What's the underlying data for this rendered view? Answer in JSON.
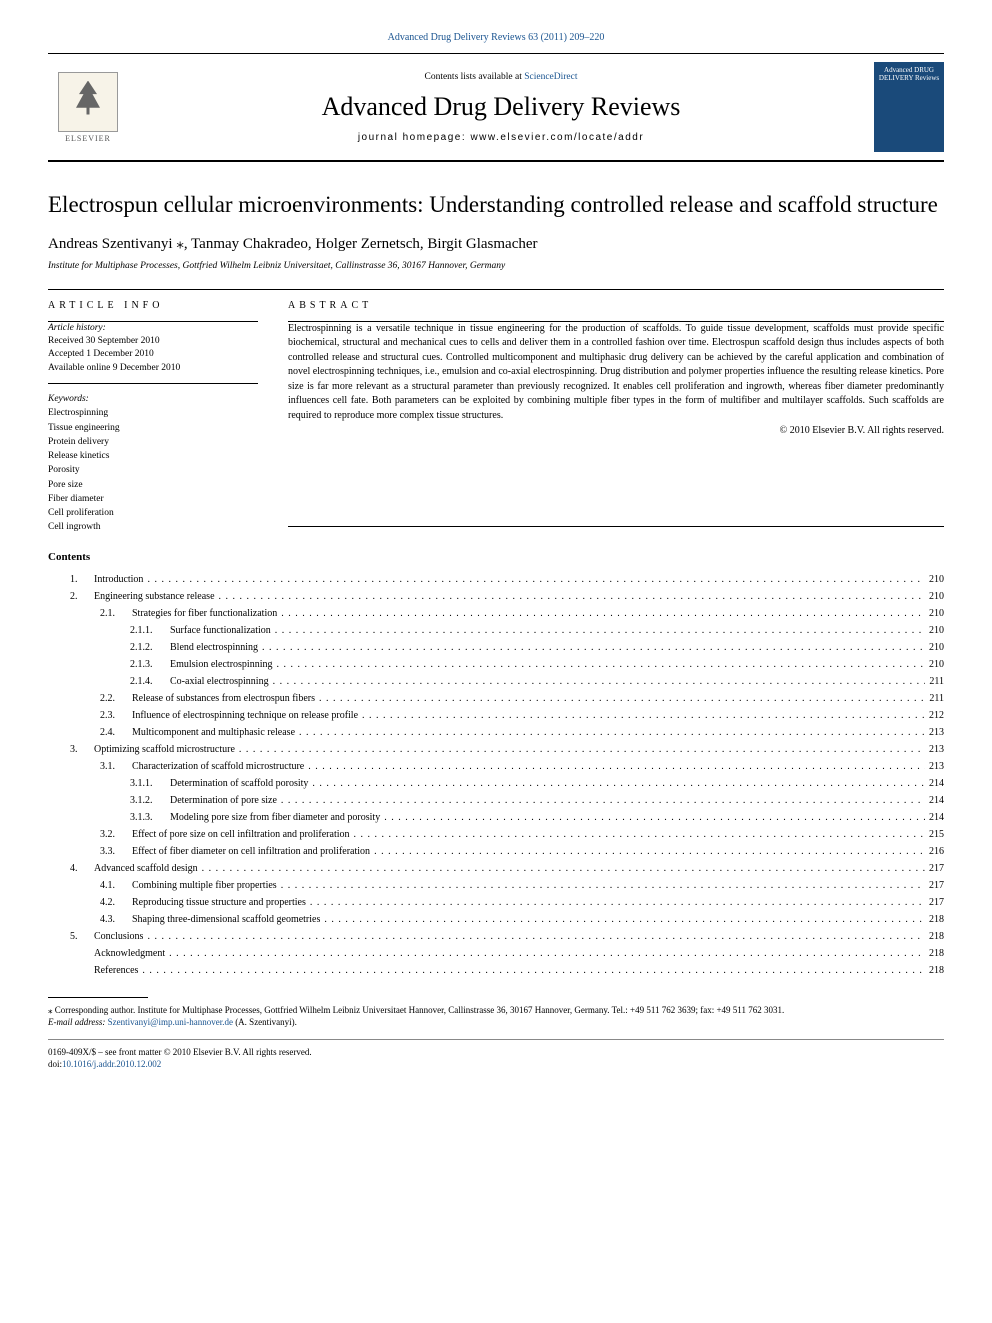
{
  "top_link": "Advanced Drug Delivery Reviews 63 (2011) 209–220",
  "header": {
    "contents_available": "Contents lists available at ",
    "sciencedirect": "ScienceDirect",
    "journal": "Advanced Drug Delivery Reviews",
    "homepage_label": "journal homepage: ",
    "homepage_url": "www.elsevier.com/locate/addr",
    "elsevier": "ELSEVIER",
    "cover_title": "Advanced DRUG DELIVERY Reviews"
  },
  "article": {
    "title": "Electrospun cellular microenvironments: Understanding controlled release and scaffold structure",
    "authors_pre": "Andreas Szentivanyi ",
    "authors_post": ", Tanmay Chakradeo, Holger Zernetsch, Birgit Glasmacher",
    "affiliation": "Institute for Multiphase Processes, Gottfried Wilhelm Leibniz Universitaet, Callinstrasse 36, 30167 Hannover, Germany"
  },
  "info": {
    "label": "ARTICLE INFO",
    "history_head": "Article history:",
    "received": "Received 30 September 2010",
    "accepted": "Accepted 1 December 2010",
    "online": "Available online 9 December 2010",
    "keywords_head": "Keywords:",
    "keywords": [
      "Electrospinning",
      "Tissue engineering",
      "Protein delivery",
      "Release kinetics",
      "Porosity",
      "Pore size",
      "Fiber diameter",
      "Cell proliferation",
      "Cell ingrowth"
    ]
  },
  "abstract": {
    "label": "ABSTRACT",
    "text": "Electrospinning is a versatile technique in tissue engineering for the production of scaffolds. To guide tissue development, scaffolds must provide specific biochemical, structural and mechanical cues to cells and deliver them in a controlled fashion over time. Electrospun scaffold design thus includes aspects of both controlled release and structural cues. Controlled multicomponent and multiphasic drug delivery can be achieved by the careful application and combination of novel electrospinning techniques, i.e., emulsion and co-axial electrospinning. Drug distribution and polymer properties influence the resulting release kinetics. Pore size is far more relevant as a structural parameter than previously recognized. It enables cell proliferation and ingrowth, whereas fiber diameter predominantly influences cell fate. Both parameters can be exploited by combining multiple fiber types in the form of multifiber and multilayer scaffolds. Such scaffolds are required to reproduce more complex tissue structures.",
    "copyright": "© 2010 Elsevier B.V. All rights reserved."
  },
  "contents_heading": "Contents",
  "toc": [
    {
      "n": "1.",
      "t": "Introduction",
      "p": "210",
      "i": 1
    },
    {
      "n": "2.",
      "t": "Engineering substance release",
      "p": "210",
      "i": 1
    },
    {
      "n": "2.1.",
      "t": "Strategies for fiber functionalization",
      "p": "210",
      "i": 2
    },
    {
      "n": "2.1.1.",
      "t": "Surface functionalization",
      "p": "210",
      "i": 3
    },
    {
      "n": "2.1.2.",
      "t": "Blend electrospinning",
      "p": "210",
      "i": 3
    },
    {
      "n": "2.1.3.",
      "t": "Emulsion electrospinning",
      "p": "210",
      "i": 3
    },
    {
      "n": "2.1.4.",
      "t": "Co-axial electrospinning",
      "p": "211",
      "i": 3
    },
    {
      "n": "2.2.",
      "t": "Release of substances from electrospun fibers",
      "p": "211",
      "i": 2
    },
    {
      "n": "2.3.",
      "t": "Influence of electrospinning technique on release profile",
      "p": "212",
      "i": 2
    },
    {
      "n": "2.4.",
      "t": "Multicomponent and multiphasic release",
      "p": "213",
      "i": 2
    },
    {
      "n": "3.",
      "t": "Optimizing scaffold microstructure",
      "p": "213",
      "i": 1
    },
    {
      "n": "3.1.",
      "t": "Characterization of scaffold microstructure",
      "p": "213",
      "i": 2
    },
    {
      "n": "3.1.1.",
      "t": "Determination of scaffold porosity",
      "p": "214",
      "i": 3
    },
    {
      "n": "3.1.2.",
      "t": "Determination of pore size",
      "p": "214",
      "i": 3
    },
    {
      "n": "3.1.3.",
      "t": "Modeling pore size from fiber diameter and porosity",
      "p": "214",
      "i": 3
    },
    {
      "n": "3.2.",
      "t": "Effect of pore size on cell infiltration and proliferation",
      "p": "215",
      "i": 2
    },
    {
      "n": "3.3.",
      "t": "Effect of fiber diameter on cell infiltration and proliferation",
      "p": "216",
      "i": 2
    },
    {
      "n": "4.",
      "t": "Advanced scaffold design",
      "p": "217",
      "i": 1
    },
    {
      "n": "4.1.",
      "t": "Combining multiple fiber properties",
      "p": "217",
      "i": 2
    },
    {
      "n": "4.2.",
      "t": "Reproducing tissue structure and properties",
      "p": "217",
      "i": 2
    },
    {
      "n": "4.3.",
      "t": "Shaping three-dimensional scaffold geometries",
      "p": "218",
      "i": 2
    },
    {
      "n": "5.",
      "t": "Conclusions",
      "p": "218",
      "i": 1
    },
    {
      "n": "",
      "t": "Acknowledgment",
      "p": "218",
      "i": 1
    },
    {
      "n": "",
      "t": "References",
      "p": "218",
      "i": 1
    }
  ],
  "footnote": {
    "corr": "⁎ Corresponding author. Institute for Multiphase Processes, Gottfried Wilhelm Leibniz Universitaet Hannover, Callinstrasse 36, 30167 Hannover, Germany. Tel.: +49 511 762 3639; fax: +49 511 762 3031.",
    "email_label": "E-mail address: ",
    "email": "Szentivanyi@imp.uni-hannover.de",
    "email_post": " (A. Szentivanyi)."
  },
  "doi": {
    "line1": "0169-409X/$ – see front matter © 2010 Elsevier B.V. All rights reserved.",
    "line2_pre": "doi:",
    "line2_link": "10.1016/j.addr.2010.12.002"
  },
  "colors": {
    "link": "#1a5490",
    "text": "#000000",
    "cover_bg": "#1a4a7a"
  }
}
